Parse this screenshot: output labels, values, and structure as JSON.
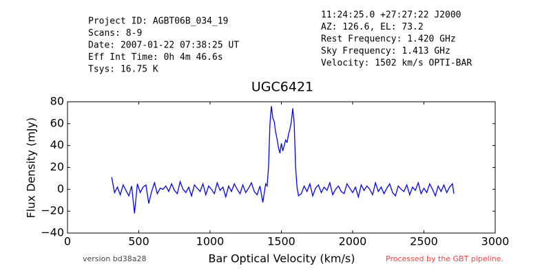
{
  "chart_data": {
    "type": "line",
    "title": "UGC6421",
    "header_left": [
      "Project ID: AGBT06B_034_19",
      "Scans: 8-9",
      "Date: 2007-01-22 07:38:25 UT",
      "Eff Int Time: 0h 4m 46.6s",
      "Tsys: 16.75 K"
    ],
    "header_right": [
      "11:24:25.0 +27:27:22 J2000",
      "AZ: 126.6, EL: 73.2",
      "Rest Frequency:   1.420 GHz",
      "Sky Frequency:    1.413 GHz",
      "Velocity: 1502 km/s OPTI-BAR"
    ],
    "footer_left": "version bd38a28",
    "footer_right": "Processed by the GBT pipeline.",
    "x_label": "Bar Optical Velocity (km/s)",
    "y_label": "Flux Density (mJy)",
    "xlim": [
      0,
      3000
    ],
    "xticks": [
      0,
      500,
      1000,
      1500,
      2000,
      2500,
      3000
    ],
    "ylim": [
      -40,
      80
    ],
    "yticks": [
      {
        "value": -40,
        "label": "−40"
      },
      {
        "value": -20,
        "label": "−20"
      },
      0,
      20,
      40,
      60,
      80
    ],
    "grid": false,
    "x": [
      310,
      330,
      350,
      370,
      390,
      410,
      430,
      450,
      470,
      490,
      510,
      530,
      550,
      570,
      590,
      610,
      630,
      650,
      670,
      690,
      710,
      730,
      750,
      770,
      790,
      810,
      830,
      850,
      870,
      890,
      910,
      930,
      950,
      970,
      990,
      1010,
      1030,
      1050,
      1070,
      1090,
      1110,
      1130,
      1150,
      1170,
      1190,
      1210,
      1230,
      1250,
      1270,
      1290,
      1310,
      1330,
      1350,
      1370,
      1390,
      1400,
      1410,
      1420,
      1430,
      1440,
      1450,
      1460,
      1470,
      1480,
      1490,
      1500,
      1510,
      1520,
      1530,
      1540,
      1550,
      1560,
      1570,
      1580,
      1590,
      1600,
      1610,
      1620,
      1640,
      1660,
      1680,
      1700,
      1720,
      1740,
      1760,
      1780,
      1800,
      1820,
      1840,
      1860,
      1880,
      1900,
      1920,
      1940,
      1960,
      1980,
      2000,
      2020,
      2040,
      2060,
      2080,
      2100,
      2120,
      2140,
      2160,
      2180,
      2200,
      2220,
      2240,
      2260,
      2280,
      2300,
      2320,
      2340,
      2360,
      2380,
      2400,
      2420,
      2440,
      2460,
      2480,
      2500,
      2520,
      2540,
      2560,
      2580,
      2600,
      2620,
      2640,
      2660,
      2680,
      2700,
      2710
    ],
    "series": [
      {
        "color": "#0000ff",
        "values": [
          11,
          -3,
          2,
          -5,
          4,
          -1,
          -6,
          3,
          -22,
          5,
          -3,
          2,
          4,
          -13,
          -2,
          6,
          -4,
          1,
          0,
          3,
          -2,
          5,
          -1,
          -4,
          7,
          0,
          -3,
          2,
          -6,
          4,
          1,
          -2,
          5,
          -5,
          3,
          0,
          -4,
          6,
          -1,
          2,
          -7,
          3,
          -2,
          5,
          0,
          -4,
          4,
          -3,
          1,
          6,
          -2,
          -5,
          3,
          -12,
          5,
          3,
          20,
          60,
          76,
          65,
          62,
          52,
          46,
          38,
          33,
          42,
          35,
          40,
          45,
          43,
          50,
          55,
          62,
          74,
          60,
          20,
          2,
          -6,
          -4,
          3,
          -2,
          5,
          -6,
          1,
          4,
          -3,
          2,
          -1,
          6,
          -5,
          0,
          3,
          -2,
          -4,
          5,
          1,
          -3,
          2,
          -7,
          4,
          -1,
          3,
          0,
          -5,
          6,
          -2,
          2,
          -4,
          1,
          5,
          -3,
          -6,
          3,
          0,
          -2,
          4,
          -5,
          2,
          -1,
          6,
          -4,
          1,
          -3,
          5,
          0,
          -6,
          3,
          -2,
          4,
          -3,
          2,
          5,
          -4
        ]
      }
    ]
  }
}
